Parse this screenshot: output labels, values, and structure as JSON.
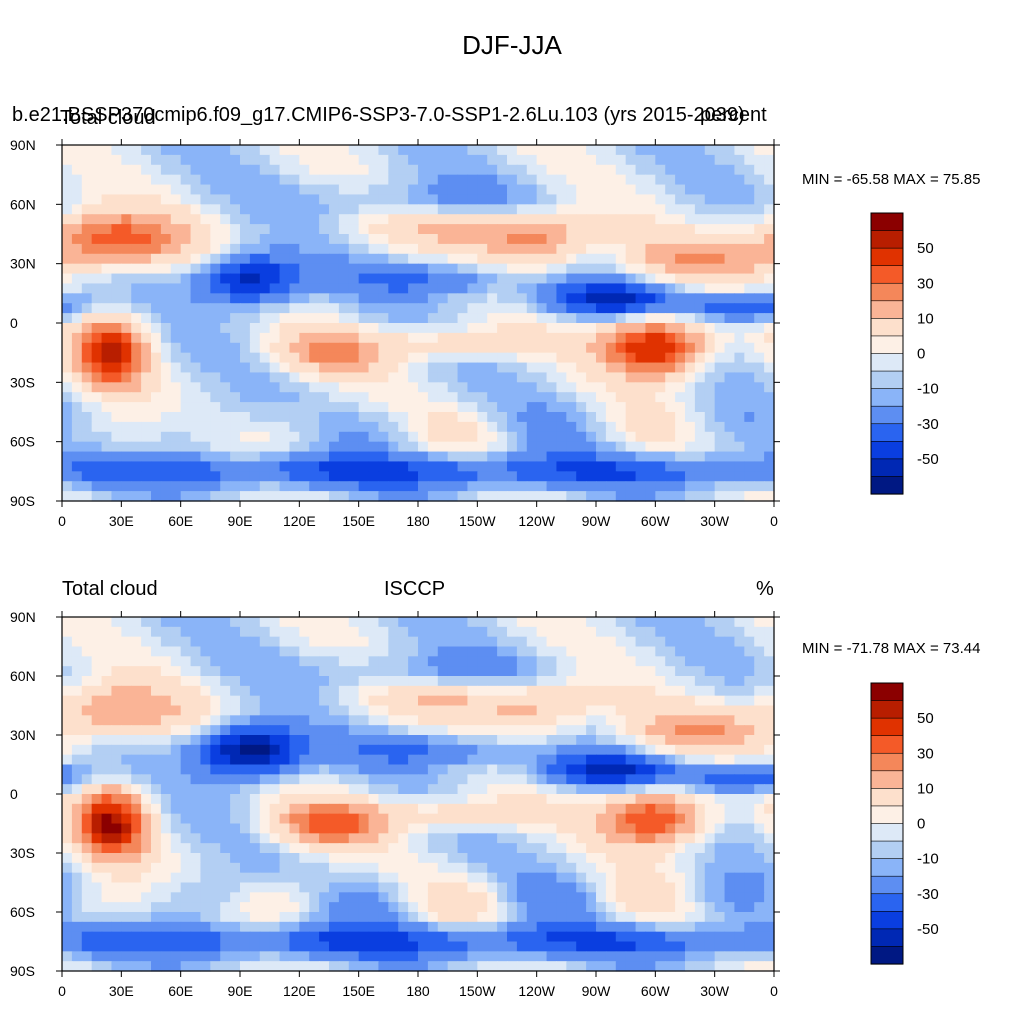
{
  "main_title": "DJF-JJA",
  "panels": [
    {
      "left_title": "Total cloud",
      "center_title": "b.e21.BSSP370cmip6.f09_g17.CMIP6-SSP3-7.0-SSP1-2.6Lu.103 (yrs 2015-2039)",
      "right_title": "percent",
      "min_max": "MIN = -65.58 MAX =  75.85"
    },
    {
      "left_title": "Total cloud",
      "center_title": "ISCCP",
      "right_title": "%",
      "min_max": "MIN = -71.78 MAX =  73.44"
    }
  ],
  "colorbar": {
    "labels": [
      "50",
      "30",
      "10",
      "0",
      "-10",
      "-30",
      "-50"
    ],
    "colors": [
      "#8b0000",
      "#b81e00",
      "#e03200",
      "#f45a28",
      "#f4875a",
      "#fab496",
      "#fde0cc",
      "#fdf0e6",
      "#dde9f7",
      "#b3cff3",
      "#8ab4f8",
      "#5d8ef2",
      "#2a64f0",
      "#0a3ee0",
      "#0028b4",
      "#001883"
    ]
  },
  "axes": {
    "x_ticks": [
      "0",
      "30E",
      "60E",
      "90E",
      "120E",
      "150E",
      "180",
      "150W",
      "120W",
      "90W",
      "60W",
      "30W",
      "0"
    ],
    "y_ticks": [
      "90N",
      "60N",
      "30N",
      "0",
      "30S",
      "60S",
      "90S"
    ]
  },
  "chart_data": [
    {
      "type": "heatmap",
      "title": "DJF-JJA",
      "series": [
        {
          "name": "Total cloud",
          "min": -65.58,
          "max": 75.85
        }
      ],
      "xlim": [
        0,
        360
      ],
      "ylim": [
        -90,
        90
      ],
      "units": "percent",
      "contour_levels": [
        -70,
        -60,
        -50,
        -40,
        -30,
        -20,
        -10,
        -5,
        0,
        5,
        10,
        20,
        30,
        40,
        50,
        60,
        70
      ]
    },
    {
      "type": "heatmap",
      "title": "DJF-JJA",
      "series": [
        {
          "name": "Total cloud",
          "min": -71.78,
          "max": 73.44
        }
      ],
      "xlim": [
        0,
        360
      ],
      "ylim": [
        -90,
        90
      ],
      "units": "%",
      "contour_levels": [
        -70,
        -60,
        -50,
        -40,
        -30,
        -20,
        -10,
        -5,
        0,
        5,
        10,
        20,
        30,
        40,
        50,
        60,
        70
      ]
    }
  ]
}
